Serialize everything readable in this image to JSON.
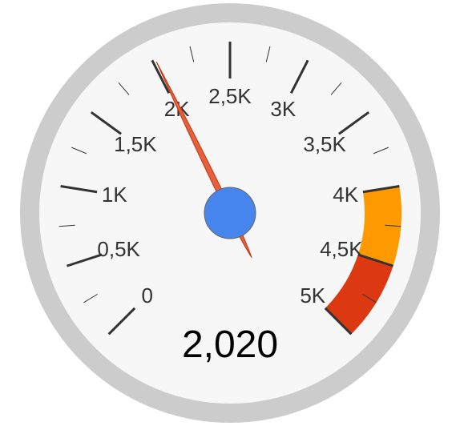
{
  "chart_data": {
    "type": "gauge",
    "min": 0,
    "max": 5000,
    "value": 2020,
    "value_label": "2,020",
    "major_ticks": [
      {
        "value": 0,
        "label": "0"
      },
      {
        "value": 500,
        "label": "0,5K"
      },
      {
        "value": 1000,
        "label": "1K"
      },
      {
        "value": 1500,
        "label": "1,5K"
      },
      {
        "value": 2000,
        "label": "2K"
      },
      {
        "value": 2500,
        "label": "2,5K"
      },
      {
        "value": 3000,
        "label": "3K"
      },
      {
        "value": 3500,
        "label": "3,5K"
      },
      {
        "value": 4000,
        "label": "4K"
      },
      {
        "value": 4500,
        "label": "4,5K"
      },
      {
        "value": 5000,
        "label": "5K"
      }
    ],
    "minor_ticks_per_major": 1,
    "bands": [
      {
        "name": "yellow-band",
        "from": 4000,
        "to": 4500,
        "color": "#ff9900"
      },
      {
        "name": "red-band",
        "from": 4500,
        "to": 5000,
        "color": "#dc3912"
      }
    ],
    "colors": {
      "rim": "#cccccc",
      "face": "#f7f7f7",
      "tick": "#333333",
      "needle": "#e5603b",
      "needle_stroke": "#c63310",
      "hub": "#4684ee",
      "hub_stroke": "#666666",
      "label": "#333333",
      "value_text": "#000000"
    }
  }
}
